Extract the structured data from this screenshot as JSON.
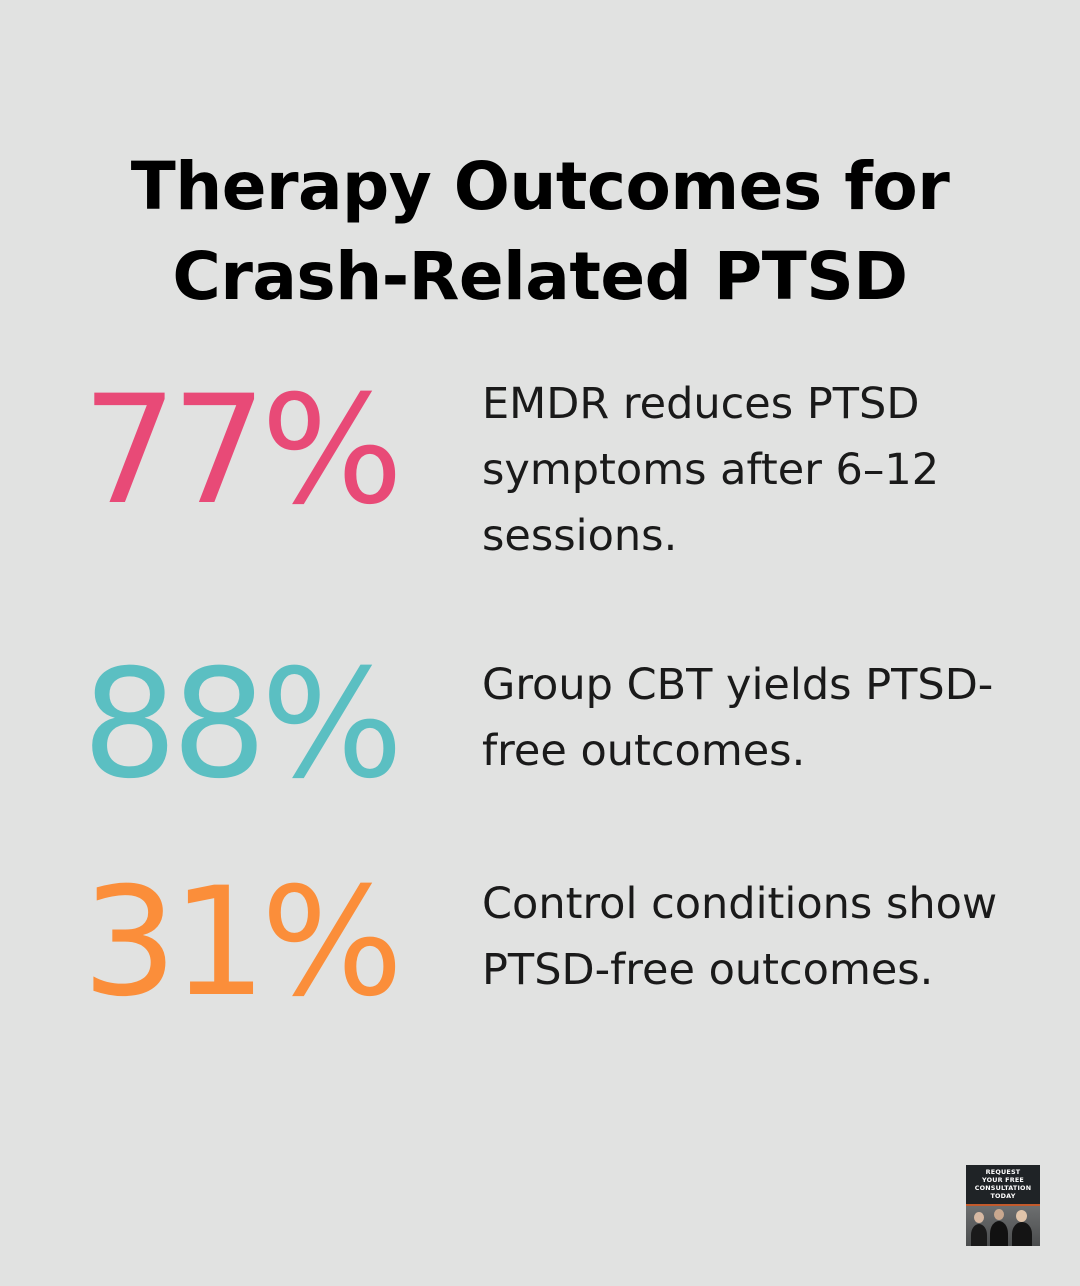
{
  "title": {
    "line1": "Therapy Outcomes for",
    "line2": "Crash-Related PTSD"
  },
  "stats": [
    {
      "value": "77%",
      "color": "#e84a77",
      "description": "EMDR reduces PTSD symptoms after 6–12 sessions."
    },
    {
      "value": "88%",
      "color": "#5bbfc2",
      "description": "Group CBT yields PTSD-free outcomes."
    },
    {
      "value": "31%",
      "color": "#fb8e3a",
      "description": "Control conditions show PTSD-free outcomes."
    }
  ],
  "cta": {
    "line1": "REQUEST",
    "line2": "YOUR FREE",
    "line3": "CONSULTATION",
    "line4": "TODAY"
  },
  "colors": {
    "background": "#e1e2e1",
    "title": "#000000",
    "text": "#1a1a1a",
    "badge_background": "#1f2326",
    "badge_accent": "#c25a2c"
  }
}
